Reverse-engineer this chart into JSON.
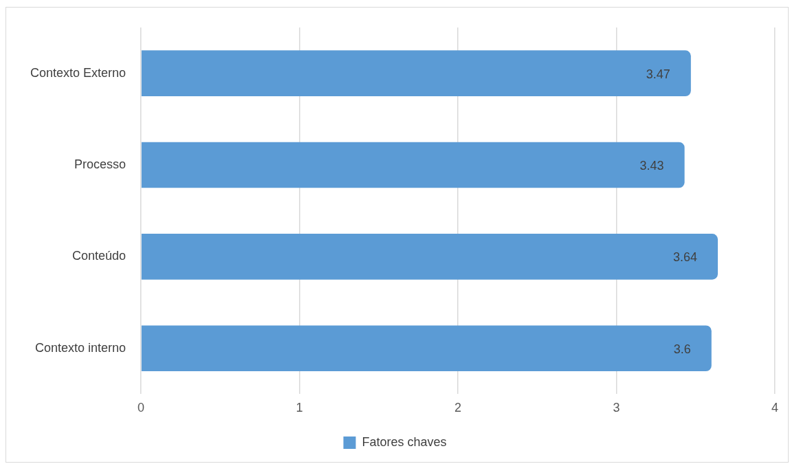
{
  "chart_data": {
    "type": "bar",
    "orientation": "horizontal",
    "categories": [
      "Contexto Externo",
      "Processo",
      "Conteúdo",
      "Contexto interno"
    ],
    "series": [
      {
        "name": "Fatores chaves",
        "color": "#5b9bd5",
        "values": [
          3.47,
          3.43,
          3.64,
          3.6
        ]
      }
    ],
    "xlim": [
      0,
      4
    ],
    "xticks": [
      0,
      1,
      2,
      3,
      4
    ],
    "grid": "x",
    "legend": "bottom",
    "data_labels": true
  }
}
